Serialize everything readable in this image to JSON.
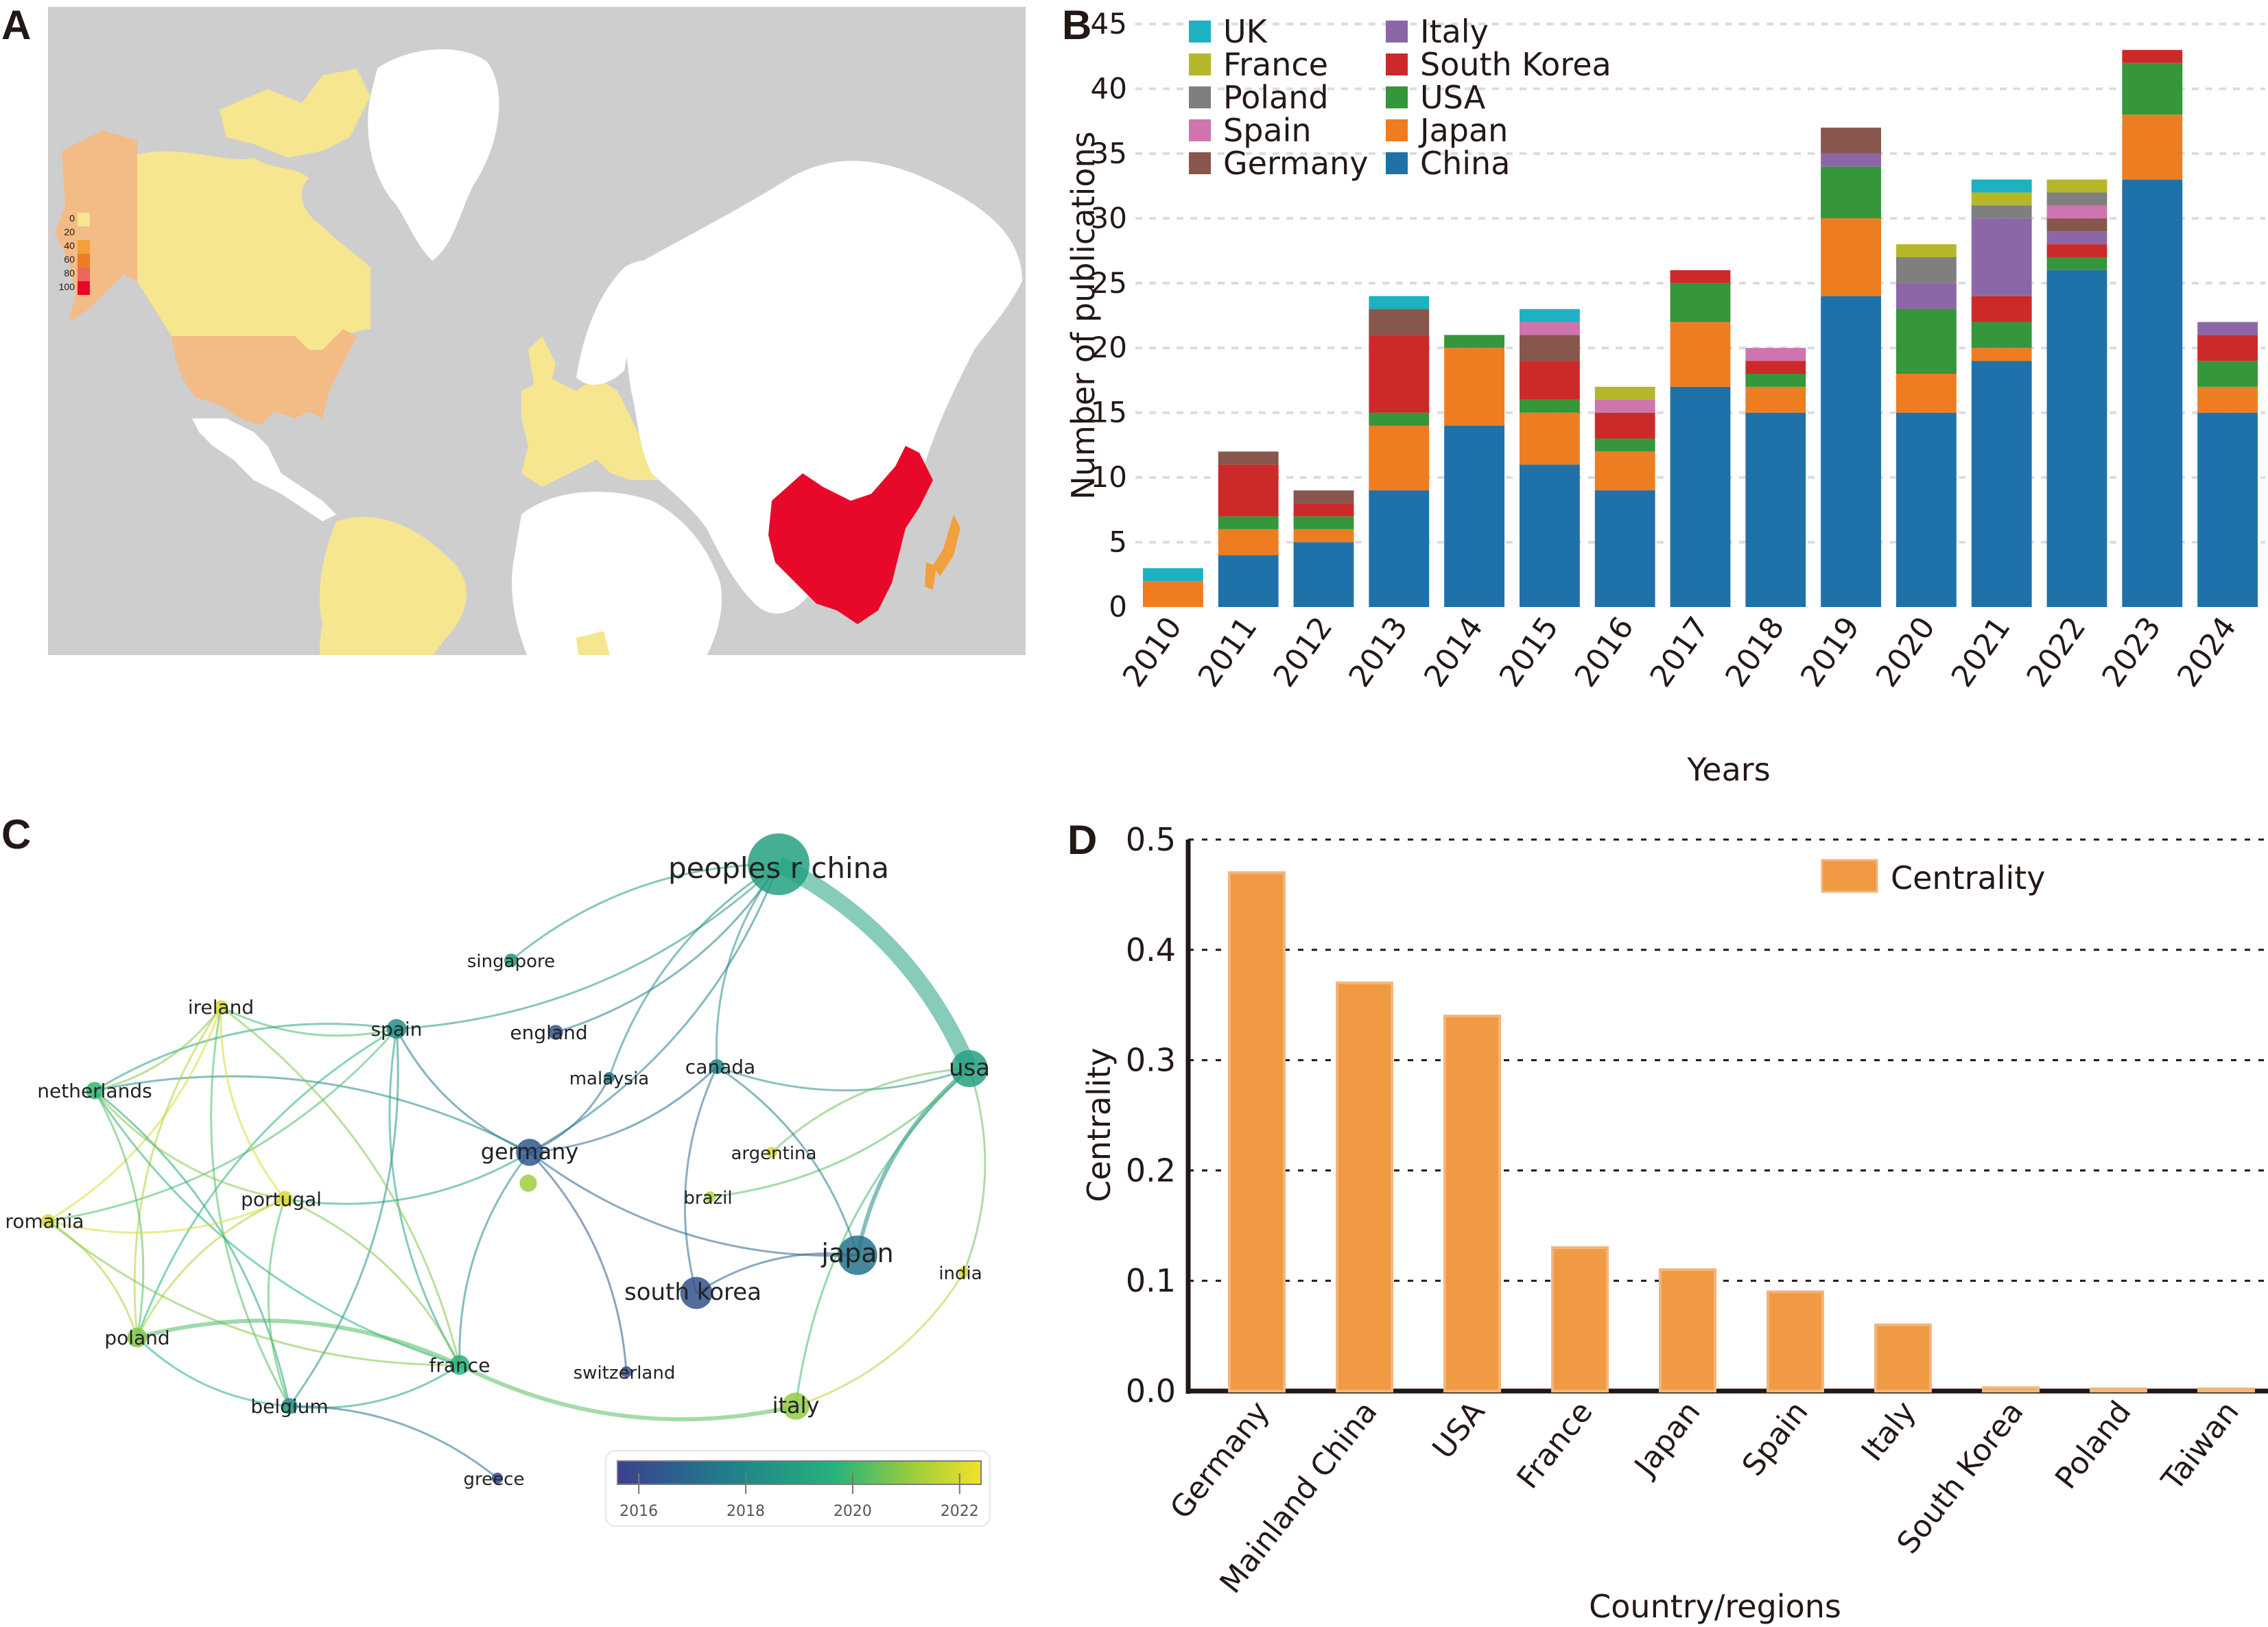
{
  "panels": {
    "a": {
      "letter": "A"
    },
    "b": {
      "letter": "B"
    },
    "c": {
      "letter": "C"
    },
    "d": {
      "letter": "D"
    }
  },
  "map": {
    "legend_labels": [
      "0",
      "20",
      "40",
      "60",
      "80",
      "100"
    ],
    "legend_colors": [
      "#f5e68f",
      "#f3bb86",
      "#f1a03b",
      "#ee7d22",
      "#ec6659",
      "#e8092a"
    ],
    "ocean_color": "#cfcece",
    "no_data_color": "#ffffff",
    "country_bins": {
      "China": "100",
      "Japan": "40-60",
      "USA": "20",
      "Alaska (USA)": "20",
      "Canada": "0",
      "Brazil/South America": "0",
      "Europe": "0",
      "Australia": "0",
      "Nigeria": "0",
      "Southeast Asia": "0"
    }
  },
  "chart_data": [
    {
      "type": "bar",
      "stacked": true,
      "title": "",
      "xlabel": "Years",
      "ylabel": "Number of publications",
      "ylim": [
        0,
        45
      ],
      "yticks": [
        0,
        5,
        10,
        15,
        20,
        25,
        30,
        35,
        40,
        45
      ],
      "grid": true,
      "legend_position": "top-left",
      "categories": [
        "2010",
        "2011",
        "2012",
        "2013",
        "2014",
        "2015",
        "2016",
        "2017",
        "2018",
        "2019",
        "2020",
        "2021",
        "2022",
        "2023",
        "2024"
      ],
      "series": [
        {
          "name": "China",
          "color": "#1f72a9",
          "values": [
            0,
            4,
            5,
            9,
            14,
            11,
            9,
            17,
            15,
            24,
            15,
            19,
            26,
            33,
            15
          ]
        },
        {
          "name": "Japan",
          "color": "#ee7d21",
          "values": [
            2,
            2,
            1,
            5,
            6,
            4,
            3,
            5,
            2,
            6,
            3,
            1,
            0,
            5,
            2
          ]
        },
        {
          "name": "USA",
          "color": "#35963b",
          "values": [
            0,
            1,
            1,
            1,
            1,
            1,
            1,
            3,
            1,
            4,
            5,
            2,
            1,
            4,
            2
          ]
        },
        {
          "name": "South Korea",
          "color": "#cc292b",
          "values": [
            0,
            4,
            1,
            6,
            0,
            3,
            2,
            1,
            1,
            0,
            0,
            2,
            1,
            1,
            2
          ]
        },
        {
          "name": "Italy",
          "color": "#8b67a8",
          "values": [
            0,
            0,
            0,
            0,
            0,
            0,
            0,
            0,
            0,
            1,
            2,
            6,
            1,
            0,
            1
          ]
        },
        {
          "name": "Germany",
          "color": "#87564c",
          "values": [
            0,
            1,
            1,
            2,
            0,
            2,
            0,
            0,
            0,
            2,
            0,
            0,
            1,
            0,
            0
          ]
        },
        {
          "name": "Spain",
          "color": "#ce74ae",
          "values": [
            0,
            0,
            0,
            0,
            0,
            1,
            1,
            0,
            1,
            0,
            0,
            0,
            1,
            0,
            0
          ]
        },
        {
          "name": "Poland",
          "color": "#7f7f7f",
          "values": [
            0,
            0,
            0,
            0,
            0,
            0,
            0,
            0,
            0,
            0,
            2,
            1,
            1,
            0,
            0
          ]
        },
        {
          "name": "France",
          "color": "#b5b72b",
          "values": [
            0,
            0,
            0,
            0,
            0,
            0,
            1,
            0,
            0,
            0,
            1,
            1,
            1,
            0,
            0
          ]
        },
        {
          "name": "UK",
          "color": "#1eb1c1",
          "values": [
            1,
            0,
            0,
            1,
            0,
            1,
            0,
            0,
            0,
            0,
            0,
            1,
            0,
            0,
            0
          ]
        }
      ],
      "legend_order": [
        "UK",
        "France",
        "Poland",
        "Spain",
        "Germany",
        "Italy",
        "South Korea",
        "USA",
        "Japan",
        "China"
      ]
    },
    {
      "type": "network",
      "title": "",
      "colorbar": {
        "ticks": [
          "2016",
          "2018",
          "2020",
          "2022"
        ],
        "range": [
          2015.6,
          2022.4
        ],
        "colors": [
          "#3b3f8e",
          "#217d8c",
          "#26b37b",
          "#a0cd3b",
          "#f3e22a"
        ]
      },
      "nodes": [
        {
          "id": "peoples r china",
          "year": 2019.0,
          "size": 5
        },
        {
          "id": "usa",
          "year": 2019.0,
          "size": 3
        },
        {
          "id": "japan",
          "year": 2017.3,
          "size": 3.2
        },
        {
          "id": "south korea",
          "year": 2016.3,
          "size": 2.6
        },
        {
          "id": "germany",
          "year": 2016.4,
          "size": 2.2
        },
        {
          "id": "italy",
          "year": 2021.0,
          "size": 2.2
        },
        {
          "id": "spain",
          "year": 2018.3,
          "size": 1.6
        },
        {
          "id": "france",
          "year": 2019.6,
          "size": 1.6
        },
        {
          "id": "poland",
          "year": 2020.8,
          "size": 1.6
        },
        {
          "id": "netherlands",
          "year": 2019.8,
          "size": 1.4
        },
        {
          "id": "ireland",
          "year": 2022.0,
          "size": 1.1
        },
        {
          "id": "portugal",
          "year": 2022.0,
          "size": 1.3
        },
        {
          "id": "romania",
          "year": 2022.0,
          "size": 1.1
        },
        {
          "id": "belgium",
          "year": 2018.4,
          "size": 1.3
        },
        {
          "id": "greece",
          "year": 2016.1,
          "size": 0.9
        },
        {
          "id": "switzerland",
          "year": 2016.2,
          "size": 0.9
        },
        {
          "id": "canada",
          "year": 2017.9,
          "size": 1.2
        },
        {
          "id": "argentina",
          "year": 2022.0,
          "size": 0.9
        },
        {
          "id": "brazil",
          "year": 2021.5,
          "size": 0.9
        },
        {
          "id": "india",
          "year": 2022.0,
          "size": 0.9
        },
        {
          "id": "malaysia",
          "year": 2017.5,
          "size": 0.9
        },
        {
          "id": "england",
          "year": 2016.3,
          "size": 1.2
        },
        {
          "id": "singapore",
          "year": 2018.6,
          "size": 1.1
        },
        {
          "id": "",
          "year": 2021.2,
          "size": 1.4
        }
      ],
      "edges": [
        [
          "peoples r china",
          "usa",
          8
        ],
        [
          "peoples r china",
          "singapore",
          1
        ],
        [
          "peoples r china",
          "england",
          1
        ],
        [
          "peoples r china",
          "malaysia",
          1
        ],
        [
          "peoples r china",
          "spain",
          1
        ],
        [
          "peoples r china",
          "canada",
          1
        ],
        [
          "peoples r china",
          "germany",
          1
        ],
        [
          "usa",
          "japan",
          2
        ],
        [
          "usa",
          "canada",
          1
        ],
        [
          "usa",
          "argentina",
          1
        ],
        [
          "usa",
          "brazil",
          1
        ],
        [
          "usa",
          "italy",
          1
        ],
        [
          "usa",
          "india",
          1
        ],
        [
          "japan",
          "south korea",
          1
        ],
        [
          "japan",
          "germany",
          1
        ],
        [
          "japan",
          "canada",
          1
        ],
        [
          "canada",
          "germany",
          1
        ],
        [
          "canada",
          "south korea",
          1
        ],
        [
          "germany",
          "spain",
          1
        ],
        [
          "germany",
          "netherlands",
          1
        ],
        [
          "germany",
          "switzerland",
          1
        ],
        [
          "germany",
          "malaysia",
          1
        ],
        [
          "germany",
          "portugal",
          1
        ],
        [
          "germany",
          "france",
          1
        ],
        [
          "spain",
          "ireland",
          1
        ],
        [
          "spain",
          "netherlands",
          1
        ],
        [
          "spain",
          "belgium",
          1
        ],
        [
          "spain",
          "france",
          1
        ],
        [
          "spain",
          "romania",
          1
        ],
        [
          "spain",
          "poland",
          1
        ],
        [
          "ireland",
          "netherlands",
          1
        ],
        [
          "ireland",
          "portugal",
          1
        ],
        [
          "ireland",
          "romania",
          1
        ],
        [
          "ireland",
          "poland",
          1
        ],
        [
          "ireland",
          "france",
          1
        ],
        [
          "ireland",
          "belgium",
          1
        ],
        [
          "netherlands",
          "poland",
          1
        ],
        [
          "netherlands",
          "france",
          1
        ],
        [
          "netherlands",
          "belgium",
          1
        ],
        [
          "netherlands",
          "portugal",
          1
        ],
        [
          "portugal",
          "romania",
          1
        ],
        [
          "portugal",
          "poland",
          1
        ],
        [
          "portugal",
          "france",
          1
        ],
        [
          "portugal",
          "belgium",
          1
        ],
        [
          "romania",
          "poland",
          1
        ],
        [
          "romania",
          "france",
          1
        ],
        [
          "poland",
          "france",
          2
        ],
        [
          "poland",
          "belgium",
          1
        ],
        [
          "france",
          "belgium",
          1
        ],
        [
          "france",
          "italy",
          2
        ],
        [
          "belgium",
          "greece",
          1
        ],
        [
          "italy",
          "india",
          1
        ]
      ]
    },
    {
      "type": "bar",
      "title": "",
      "xlabel": "Country/regions",
      "ylabel": "Centrality",
      "ylim": [
        0,
        0.5
      ],
      "yticks": [
        "0.0",
        "0.1",
        "0.2",
        "0.3",
        "0.4",
        "0.5"
      ],
      "grid": true,
      "legend_position": "top-right",
      "legend": [
        "Centrality"
      ],
      "color": "#f09a43",
      "categories": [
        "Germany",
        "Mainland China",
        "USA",
        "France",
        "Japan",
        "Spain",
        "Italy",
        "South Korea",
        "Poland",
        "Taiwan"
      ],
      "values": [
        0.47,
        0.37,
        0.34,
        0.13,
        0.11,
        0.09,
        0.06,
        0.003,
        0.002,
        0.002
      ]
    }
  ]
}
